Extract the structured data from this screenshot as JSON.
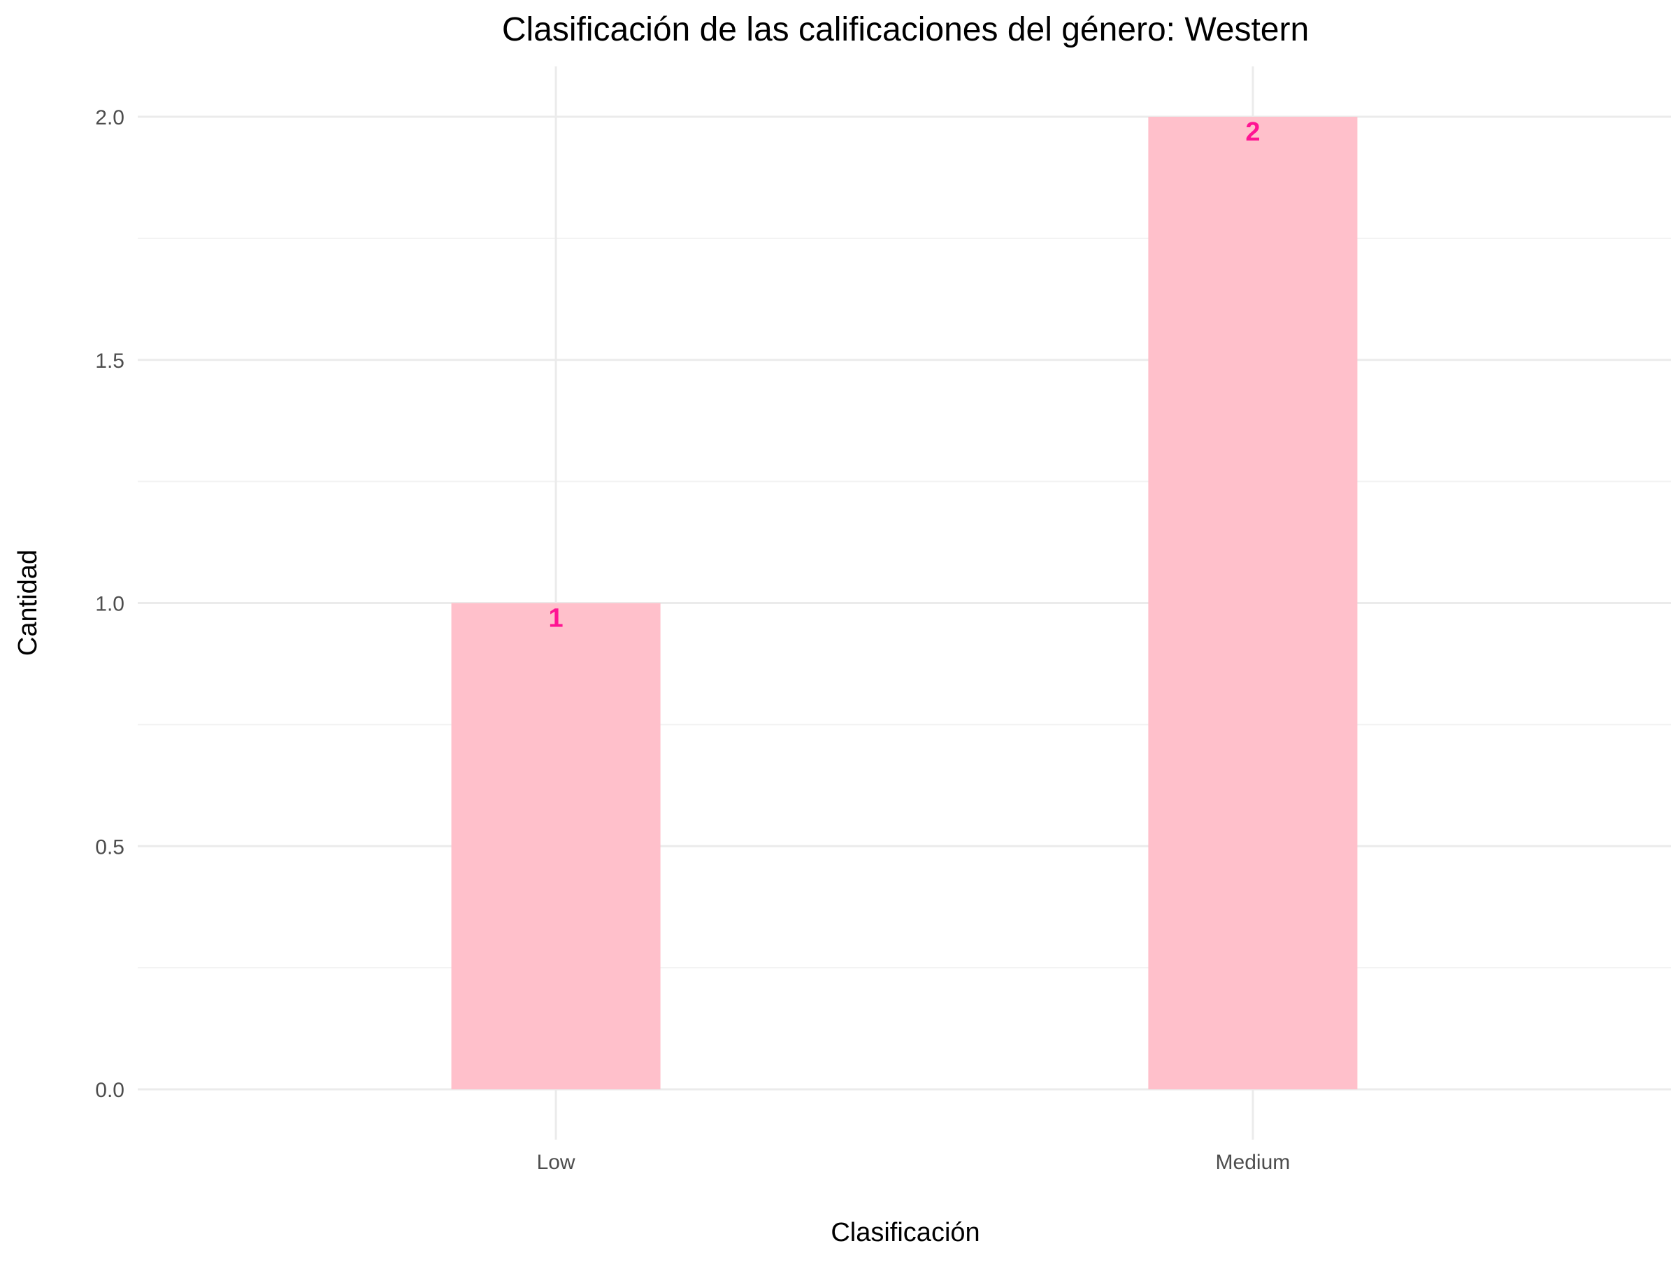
{
  "chart_data": {
    "type": "bar",
    "title": "Clasificación de las calificaciones del género: Western",
    "xlabel": "Clasificación",
    "ylabel": "Cantidad",
    "categories": [
      "Low",
      "Medium"
    ],
    "values": [
      1,
      2
    ],
    "data_labels": [
      "1",
      "2"
    ],
    "y_ticks": [
      0.0,
      0.5,
      1.0,
      1.5,
      2.0
    ],
    "y_tick_labels": [
      "0.0",
      "0.5",
      "1.0",
      "1.5",
      "2.0"
    ],
    "ylim": [
      0,
      2.1
    ],
    "grid": true,
    "legend": "none",
    "colors": {
      "bar_fill": "#ffc0cb",
      "data_label": "#ff1493"
    }
  }
}
